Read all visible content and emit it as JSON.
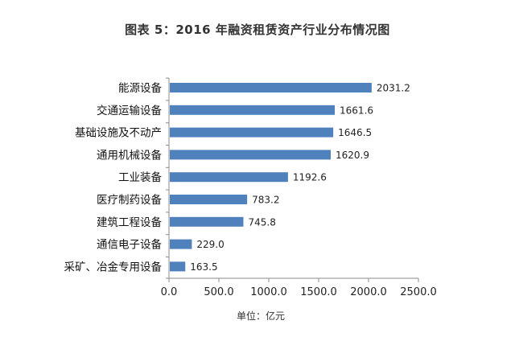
{
  "chart_data": {
    "type": "bar",
    "orientation": "horizontal",
    "title": "图表 5：2016 年融资租赁资产行业分布情况图",
    "unit_label": "单位：亿元",
    "categories": [
      "能源设备",
      "交通运输设备",
      "基础设施及不动产",
      "通用机械设备",
      "工业装备",
      "医疗制药设备",
      "建筑工程设备",
      "通信电子设备",
      "采矿、冶金专用设备"
    ],
    "values": [
      2031.2,
      1661.6,
      1646.5,
      1620.9,
      1192.6,
      783.2,
      745.8,
      229.0,
      163.5
    ],
    "value_labels": [
      "2031.2",
      "1661.6",
      "1646.5",
      "1620.9",
      "1192.6",
      "783.2",
      "745.8",
      "229.0",
      "163.5"
    ],
    "x_ticks": [
      "0.0",
      "500.0",
      "1000.0",
      "1500.0",
      "2000.0",
      "2500.0"
    ],
    "xlim": [
      0,
      2500
    ],
    "grid": false,
    "legend": "none",
    "bar_color": "#4f81bd"
  }
}
